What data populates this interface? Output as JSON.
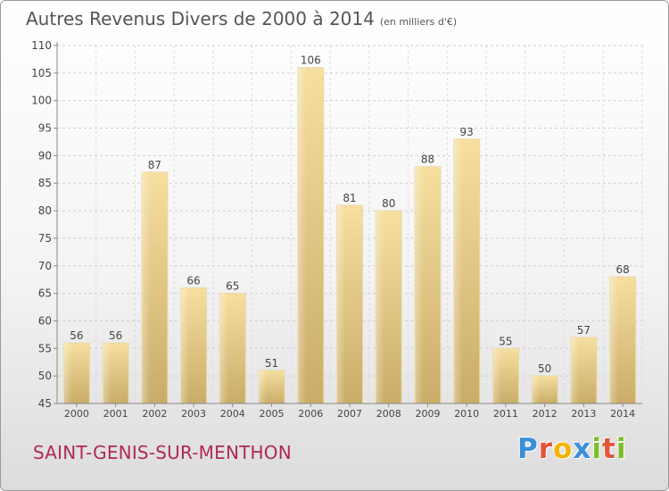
{
  "title": "Autres Revenus Divers de 2000 à 2014",
  "subtitle": "(en milliers d'€)",
  "commune": "SAINT-GENIS-SUR-MENTHON",
  "logo": {
    "letters": [
      "P",
      "r",
      "o",
      "x",
      "i",
      "t",
      "i"
    ],
    "colors": [
      "#3a8fd9",
      "#e2553a",
      "#f2b300",
      "#3a8fd9",
      "#7dbd2a",
      "#e2553a",
      "#7dbd2a"
    ]
  },
  "chart_data": {
    "type": "bar",
    "categories": [
      "2000",
      "2001",
      "2002",
      "2003",
      "2004",
      "2005",
      "2006",
      "2007",
      "2008",
      "2009",
      "2010",
      "2011",
      "2012",
      "2013",
      "2014"
    ],
    "values": [
      56,
      56,
      87,
      66,
      65,
      51,
      106,
      81,
      80,
      88,
      93,
      55,
      50,
      57,
      68
    ],
    "title": "Autres Revenus Divers de 2000 à 2014",
    "xlabel": "",
    "ylabel": "",
    "ylim": [
      45,
      110
    ],
    "yticks": [
      45,
      50,
      55,
      60,
      65,
      70,
      75,
      80,
      85,
      90,
      95,
      100,
      105,
      110
    ],
    "grid": true,
    "bar_color": "#e8c97a"
  }
}
